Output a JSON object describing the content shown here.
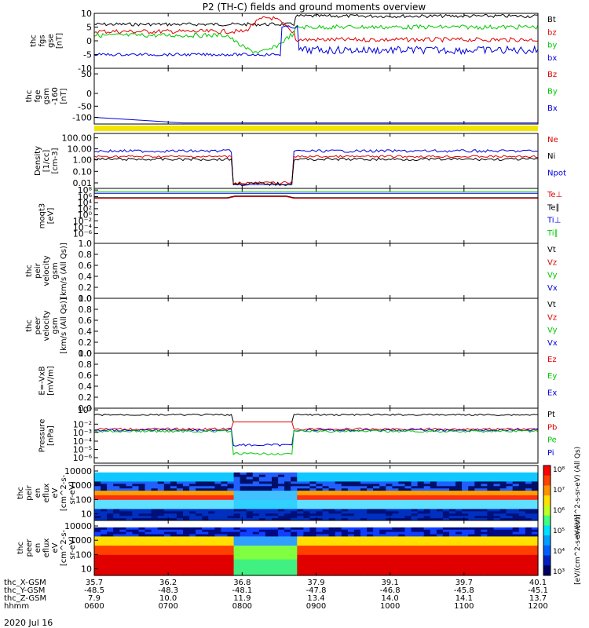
{
  "chart_data": {
    "type": "line",
    "title": "P2 (TH-C) fields and ground moments overview",
    "date_label": "2020 Jul 16",
    "orbit_rows": {
      "labels": [
        "thc_X-GSM",
        "thc_Y-GSM",
        "thc_Z-GSM",
        "hhmm"
      ],
      "columns": [
        {
          "x": "35.7",
          "y": "-48.5",
          "z": "7.9",
          "t": "0600"
        },
        {
          "x": "36.2",
          "y": "-48.3",
          "z": "10.0",
          "t": "0700"
        },
        {
          "x": "36.8",
          "y": "-48.1",
          "z": "11.9",
          "t": "0800"
        },
        {
          "x": "37.9",
          "y": "-47.8",
          "z": "13.4",
          "t": "0900"
        },
        {
          "x": "39.1",
          "y": "-46.8",
          "z": "14.0",
          "t": "1000"
        },
        {
          "x": "39.7",
          "y": "-45.8",
          "z": "14.1",
          "t": "1100"
        },
        {
          "x": "40.1",
          "y": "-45.1",
          "z": "13.7",
          "t": "1200"
        }
      ]
    },
    "panels": [
      {
        "id": "fgs",
        "ylabel": [
          "thc",
          "fgs",
          "gse",
          "[nT]"
        ],
        "yticks": [
          "10",
          "5",
          "0",
          "-5",
          "-10"
        ],
        "ylim": [
          -10,
          10
        ],
        "legend": [
          {
            "text": "Bt",
            "color": "#000000"
          },
          {
            "text": "bz",
            "color": "#e00000"
          },
          {
            "text": "by",
            "color": "#00c800"
          },
          {
            "text": "bx",
            "color": "#0000e0"
          }
        ]
      },
      {
        "id": "fge",
        "ylabel": [
          "thc",
          "fge",
          "gsm",
          "-160",
          "[nT]"
        ],
        "yticks": [
          "50",
          "0",
          "-50",
          "-100"
        ],
        "ylim": [
          -130,
          70
        ],
        "legend": [
          {
            "text": "Bz",
            "color": "#e00000"
          },
          {
            "text": "By",
            "color": "#00c800"
          },
          {
            "text": "Bx",
            "color": "#0000e0"
          }
        ]
      },
      {
        "id": "density",
        "ylabel": [
          "Density",
          "[1/cc]",
          "[cm-3]"
        ],
        "yticks": [
          "100.00",
          "10.00",
          "1.00",
          "0.10",
          "0.01"
        ],
        "ylim": [
          0.005,
          150
        ],
        "legend": [
          {
            "text": "Ne",
            "color": "#e00000"
          },
          {
            "text": "Ni",
            "color": "#000000"
          },
          {
            "text": "Npot",
            "color": "#0000e0"
          }
        ]
      },
      {
        "id": "temp",
        "ylabel": [
          "moqt3",
          "[eV]"
        ],
        "yticks": [
          "10⁸",
          "10⁶",
          "10⁴",
          "10²",
          "10⁰",
          "10⁻²",
          "10⁻⁴",
          "10⁻⁶"
        ],
        "ylim": [
          1e-07,
          100000000.0
        ],
        "legend": [
          {
            "text": "Te⊥",
            "color": "#e00000"
          },
          {
            "text": "Te∥",
            "color": "#000000"
          },
          {
            "text": "Ti⊥",
            "color": "#0000e0"
          },
          {
            "text": "Ti∥",
            "color": "#00c800"
          }
        ]
      },
      {
        "id": "peir",
        "ylabel": [
          "thc",
          "peir",
          "velocity",
          "gsm",
          "[km/s (All Qs)]"
        ],
        "yticks": [
          "1.0",
          "0.8",
          "0.6",
          "0.4",
          "0.2",
          "0.0"
        ],
        "ylim": [
          0,
          1
        ],
        "legend": [
          {
            "text": "Vt",
            "color": "#000000"
          },
          {
            "text": "Vz",
            "color": "#e00000"
          },
          {
            "text": "Vy",
            "color": "#00c800"
          },
          {
            "text": "Vx",
            "color": "#0000e0"
          }
        ]
      },
      {
        "id": "peer",
        "ylabel": [
          "thc",
          "peer",
          "velocity",
          "gsm",
          "[km/s (All Qs)]"
        ],
        "yticks": [
          "1.0",
          "0.8",
          "0.6",
          "0.4",
          "0.2",
          "0.0"
        ],
        "ylim": [
          0,
          1
        ],
        "legend": [
          {
            "text": "Vt",
            "color": "#000000"
          },
          {
            "text": "Vz",
            "color": "#e00000"
          },
          {
            "text": "Vy",
            "color": "#00c800"
          },
          {
            "text": "Vx",
            "color": "#0000e0"
          }
        ]
      },
      {
        "id": "efield",
        "ylabel": [
          "E=-VxB",
          "[mV/m]"
        ],
        "yticks": [
          "1.0",
          "0.8",
          "0.6",
          "0.4",
          "0.2",
          "0.0"
        ],
        "ylim": [
          0,
          1
        ],
        "legend": [
          {
            "text": "Ez",
            "color": "#e00000"
          },
          {
            "text": "Ey",
            "color": "#00c800"
          },
          {
            "text": "Ex",
            "color": "#0000e0"
          }
        ]
      },
      {
        "id": "pressure",
        "ylabel": [
          "Pressure",
          "[nPa]"
        ],
        "yticks": [
          "10⁰",
          "10⁻²",
          "10⁻³",
          "10⁻⁴",
          "10⁻⁵",
          "10⁻⁶"
        ],
        "ylim": [
          1e-06,
          1
        ],
        "legend": [
          {
            "text": "Pt",
            "color": "#000000"
          },
          {
            "text": "Pb",
            "color": "#e00000"
          },
          {
            "text": "Pe",
            "color": "#00c800"
          },
          {
            "text": "Pi",
            "color": "#0000e0"
          }
        ]
      },
      {
        "id": "ion_spec",
        "ylabel": [
          "thc",
          "peir",
          "en",
          "eflux",
          "eV",
          "[cm^2-s-",
          "sr-eV]"
        ],
        "yticks": [
          "10000",
          "1000",
          "100",
          "10"
        ],
        "ylim": [
          5,
          20000
        ]
      },
      {
        "id": "elec_spec",
        "ylabel": [
          "thc",
          "peer",
          "en",
          "eflux",
          "eV",
          "[cm^2-s-",
          "sr-eV]"
        ],
        "yticks": [
          "10000",
          "1000",
          "100",
          "10"
        ],
        "ylim": [
          5,
          20000
        ]
      }
    ],
    "colorbar": {
      "ticks": [
        "10⁸",
        "10⁷",
        "10⁶",
        "10⁵",
        "10⁴",
        "10³"
      ],
      "label_ion": "eV/(cm^2-s-sr-eV) (All Qs)",
      "label_elec": "[eV/(cm^2-s-sr-eV)]"
    }
  }
}
